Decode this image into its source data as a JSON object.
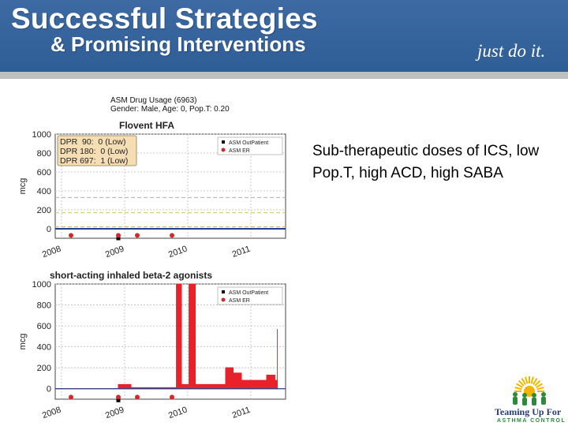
{
  "header": {
    "title": "Successful Strategies",
    "subtitle": "& Promising Interventions",
    "tagline": "just do it."
  },
  "figure": {
    "title_line1": "ASM Drug Usage (6963)",
    "title_line2": "Gender: Male, Age: 0, Pop.T: 0.20"
  },
  "body_text": "Sub-therapeutic doses of ICS, low Pop.T, high ACD, high SABA",
  "logo": {
    "line1": "Teaming Up For",
    "line2": "ASTHMA CONTROL"
  },
  "colors": {
    "header_blue": "#2f5d95",
    "series_outpatient": "#000000",
    "series_er": "#d62728",
    "saba_fill": "#e8212a",
    "flovent_line": "#1f3f8f",
    "dpr_box": "#f5deb3"
  },
  "chart_data": [
    {
      "type": "line",
      "title": "Flovent HFA",
      "ylabel": "mcg",
      "ylim": [
        -100,
        1000
      ],
      "y_ticks": [
        0,
        200,
        400,
        600,
        800,
        1000
      ],
      "x_ticks": [
        "2008",
        "2009",
        "2010",
        "2011"
      ],
      "grid": true,
      "legend_position": "top-right",
      "legend": [
        "ASM OutPatient",
        "ASM ER"
      ],
      "annotation": [
        "DPR  90:  0 (Low)",
        "DPR 180:  0 (Low)",
        "DPR 697:  1 (Low)"
      ],
      "reference_lines": [
        330,
        170,
        20
      ],
      "series": [
        {
          "name": "ASM OutPatient",
          "kind": "markers",
          "x": [
            2008.9
          ],
          "y": [
            -100
          ]
        },
        {
          "name": "ASM ER",
          "kind": "markers",
          "x": [
            2008.15,
            2008.9,
            2009.2,
            2009.75
          ],
          "y": [
            -70,
            -70,
            -70,
            -70
          ]
        }
      ],
      "line": {
        "x": [
          2007.9,
          2011.55
        ],
        "y": [
          0,
          0
        ]
      }
    },
    {
      "type": "area",
      "title": "short-acting inhaled beta-2 agonists",
      "ylabel": "mcg",
      "ylim": [
        -100,
        1000
      ],
      "y_ticks": [
        0,
        200,
        400,
        600,
        800,
        1000
      ],
      "x_ticks": [
        "2008",
        "2009",
        "2010",
        "2011"
      ],
      "grid": true,
      "legend_position": "top-right",
      "legend": [
        "ASM OutPatient",
        "ASM ER"
      ],
      "series": [
        {
          "name": "ASM OutPatient",
          "kind": "markers",
          "x": [
            2008.9
          ],
          "y": [
            -110
          ]
        },
        {
          "name": "ASM ER",
          "kind": "markers",
          "x": [
            2008.15,
            2008.9,
            2009.2,
            2009.75
          ],
          "y": [
            -80,
            -80,
            -80,
            -80
          ]
        }
      ],
      "area": {
        "x": [
          2007.9,
          2008.9,
          2008.9,
          2009.1,
          2009.1,
          2009.82,
          2009.82,
          2009.9,
          2009.9,
          2010.02,
          2010.02,
          2010.12,
          2010.12,
          2010.6,
          2010.6,
          2010.72,
          2010.72,
          2010.85,
          2010.85,
          2011.1,
          2011.1,
          2011.25,
          2011.25,
          2011.38,
          2011.38,
          2011.42,
          2011.42
        ],
        "y": [
          0,
          0,
          40,
          40,
          10,
          10,
          1000,
          1000,
          40,
          40,
          1000,
          1000,
          40,
          40,
          200,
          200,
          150,
          150,
          80,
          80,
          80,
          80,
          130,
          130,
          80,
          80,
          570
        ]
      }
    }
  ]
}
